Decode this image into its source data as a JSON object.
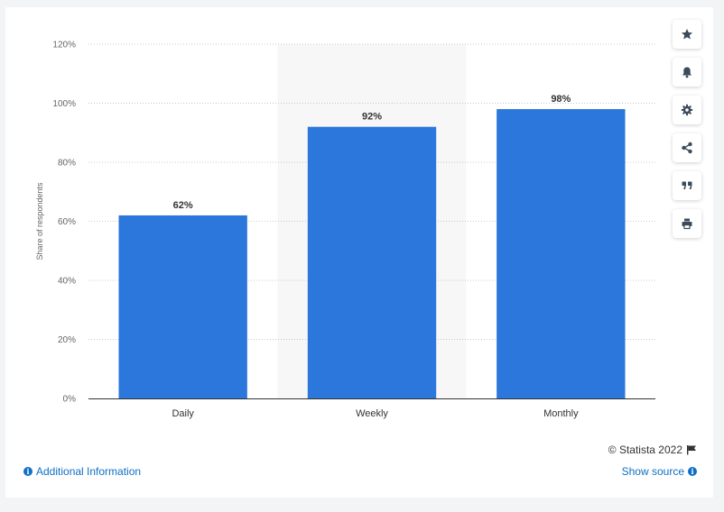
{
  "chart_data": {
    "type": "bar",
    "categories": [
      "Daily",
      "Weekly",
      "Monthly"
    ],
    "values": [
      62,
      92,
      98
    ],
    "value_labels": [
      "62%",
      "92%",
      "98%"
    ],
    "ylabel": "Share of respondents",
    "ylim": [
      0,
      120
    ],
    "yticks": [
      0,
      20,
      40,
      60,
      80,
      100,
      120
    ],
    "ytick_labels": [
      "0%",
      "20%",
      "40%",
      "60%",
      "80%",
      "100%",
      "120%"
    ],
    "highlighted_category": "Weekly",
    "grid": true,
    "bar_color": "#2b77db",
    "highlight_color": "#f7f7f7"
  },
  "footer": {
    "copyright": "© Statista 2022",
    "additional_info": "Additional Information",
    "show_source": "Show source"
  },
  "toolbar": {
    "icons": [
      "star-icon",
      "bell-icon",
      "gear-icon",
      "share-icon",
      "quote-icon",
      "print-icon"
    ]
  }
}
